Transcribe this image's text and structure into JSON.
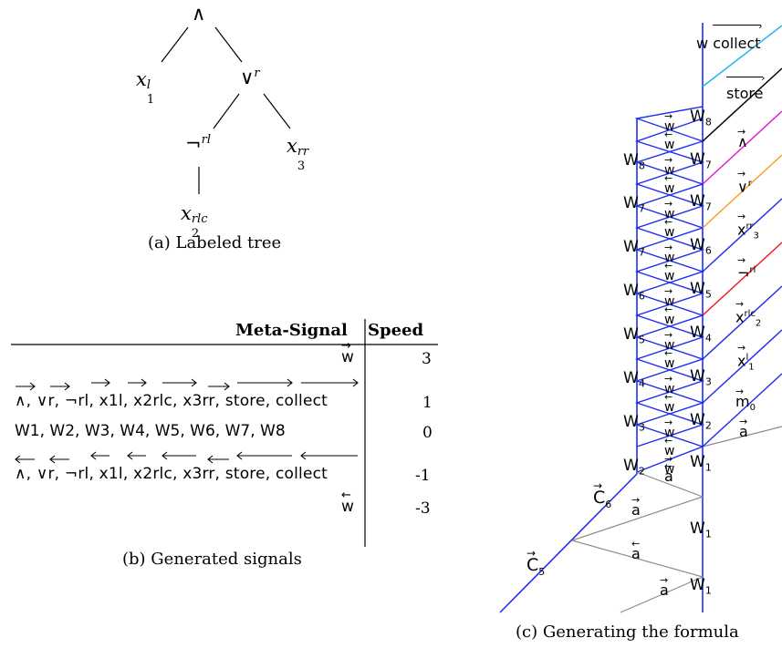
{
  "tree": {
    "caption": "(a) Labeled tree",
    "nodes": {
      "root": "∧",
      "x1": "x",
      "x1_sub": "1",
      "x1_sup": "l",
      "or": "∨",
      "or_sup": "r",
      "not": "¬",
      "not_sup": "rl",
      "x3": "x",
      "x3_sub": "3",
      "x3_sup": "rr",
      "x2": "x",
      "x2_sub": "2",
      "x2_sup": "rlc"
    }
  },
  "table": {
    "caption": "(b) Generated signals",
    "headers": [
      "Meta-Signal",
      "Speed"
    ],
    "rows": [
      {
        "signals": "w",
        "speed": "3"
      },
      {
        "signals": "∧, ∨r, ¬rl, x1l, x2rlc, x3rr, store, collect",
        "speed": "1"
      },
      {
        "signals": "W1, W2, W3, W4, W5, W6, W7, W8",
        "speed": "0"
      },
      {
        "signals": "∧, ∨r, ¬rl, x1l, x2rlc, x3rr, store, collect",
        "speed": "-1"
      },
      {
        "signals": "w",
        "speed": "-3"
      }
    ]
  },
  "diagram": {
    "caption": "(c) Generating the formula",
    "labels": {
      "w_top": "w",
      "collect": "collect",
      "store": "store",
      "and": "∧",
      "or": "∨",
      "or_sup": "r",
      "x3": "x",
      "x3_sub": "3",
      "x3_sup": "rr",
      "not": "¬",
      "not_sup": "rl",
      "x2": "x",
      "x2_sub": "2",
      "x2_sup": "rlc",
      "x1": "x",
      "x1_sub": "1",
      "x1_sup": "l",
      "m0": "m",
      "m0_sub": "0",
      "a": "a",
      "c6": "C",
      "c6_sub": "6",
      "c5": "C",
      "c5_sub": "5",
      "w": "w",
      "W": "W",
      "W1": "1",
      "W2": "2",
      "W3": "3",
      "W4": "4",
      "W5": "5",
      "W6": "6",
      "W7": "7",
      "W8": "8"
    },
    "colors": {
      "blue": "#1f2ff0",
      "gray": "#8c8c8c",
      "cyan": "#29b6e8",
      "black": "#000000",
      "magenta": "#e020d0",
      "orange": "#f5a020",
      "red": "#f01818"
    }
  }
}
